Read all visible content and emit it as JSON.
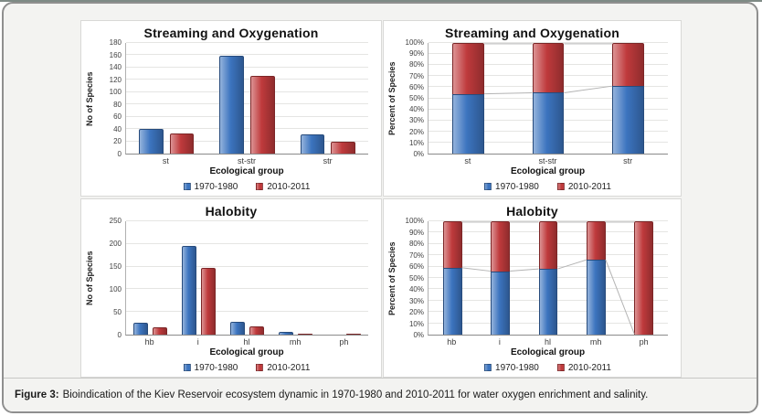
{
  "caption": {
    "label": "Figure 3:",
    "text": "Bioindication of the Kiev Reservoir ecosystem dynamic in 1970-1980 and 2010-2011 for water oxygen enrichment and salinity."
  },
  "colors": {
    "series_blue": "#3c74bf",
    "series_red": "#bf3a3c",
    "connector_line": "#b3b3b3",
    "gridline": "#e5e5e3",
    "frame_border": "#8f8f8f",
    "panel_background": "#ffffff",
    "band_background": "#f3f3f1"
  },
  "chart_data": [
    {
      "type": "bar",
      "title": "Streaming and Oxygenation",
      "categories": [
        "st",
        "st-str",
        "str"
      ],
      "series": [
        {
          "name": "1970-1980",
          "color": "#3c74bf",
          "values": [
            40,
            159,
            31
          ]
        },
        {
          "name": "2010-2011",
          "color": "#bf3a3c",
          "values": [
            33,
            127,
            19
          ]
        }
      ],
      "xlabel": "Ecological group",
      "ylabel": "No of Species",
      "ylim": [
        0,
        180
      ],
      "ytick_step": 20,
      "ytick_format": "number",
      "grid": true,
      "legend_position": "bottom"
    },
    {
      "type": "bar",
      "subtype": "stacked-100",
      "title": "Streaming and Oxygenation",
      "categories": [
        "st",
        "st-str",
        "str"
      ],
      "series": [
        {
          "name": "1970-1980",
          "color": "#3c74bf",
          "values": [
            54,
            55,
            61
          ]
        },
        {
          "name": "2010-2011",
          "color": "#bf3a3c",
          "values": [
            46,
            45,
            39
          ]
        }
      ],
      "xlabel": "Ecological group",
      "ylabel": "Percent of Species",
      "ylim": [
        0,
        100
      ],
      "ytick_step": 10,
      "ytick_format": "percent",
      "grid": true,
      "series_lines": true,
      "legend_position": "bottom"
    },
    {
      "type": "bar",
      "title": "Halobity",
      "categories": [
        "hb",
        "i",
        "hl",
        "mh",
        "ph"
      ],
      "series": [
        {
          "name": "1970-1980",
          "color": "#3c74bf",
          "values": [
            26,
            196,
            28,
            6,
            0
          ]
        },
        {
          "name": "2010-2011",
          "color": "#bf3a3c",
          "values": [
            17,
            148,
            19,
            3,
            1
          ]
        }
      ],
      "xlabel": "Ecological group",
      "ylabel": "No of Species",
      "ylim": [
        0,
        250
      ],
      "ytick_step": 50,
      "ytick_format": "number",
      "grid": true,
      "legend_position": "bottom"
    },
    {
      "type": "bar",
      "subtype": "stacked-100",
      "title": "Halobity",
      "categories": [
        "hb",
        "i",
        "hl",
        "mh",
        "ph"
      ],
      "series": [
        {
          "name": "1970-1980",
          "color": "#3c74bf",
          "values": [
            59,
            56,
            58,
            66,
            0
          ]
        },
        {
          "name": "2010-2011",
          "color": "#bf3a3c",
          "values": [
            41,
            44,
            42,
            34,
            100
          ]
        }
      ],
      "xlabel": "Ecological group",
      "ylabel": "Percent of Species",
      "ylim": [
        0,
        100
      ],
      "ytick_step": 10,
      "ytick_format": "percent",
      "grid": true,
      "series_lines": true,
      "legend_position": "bottom"
    }
  ]
}
